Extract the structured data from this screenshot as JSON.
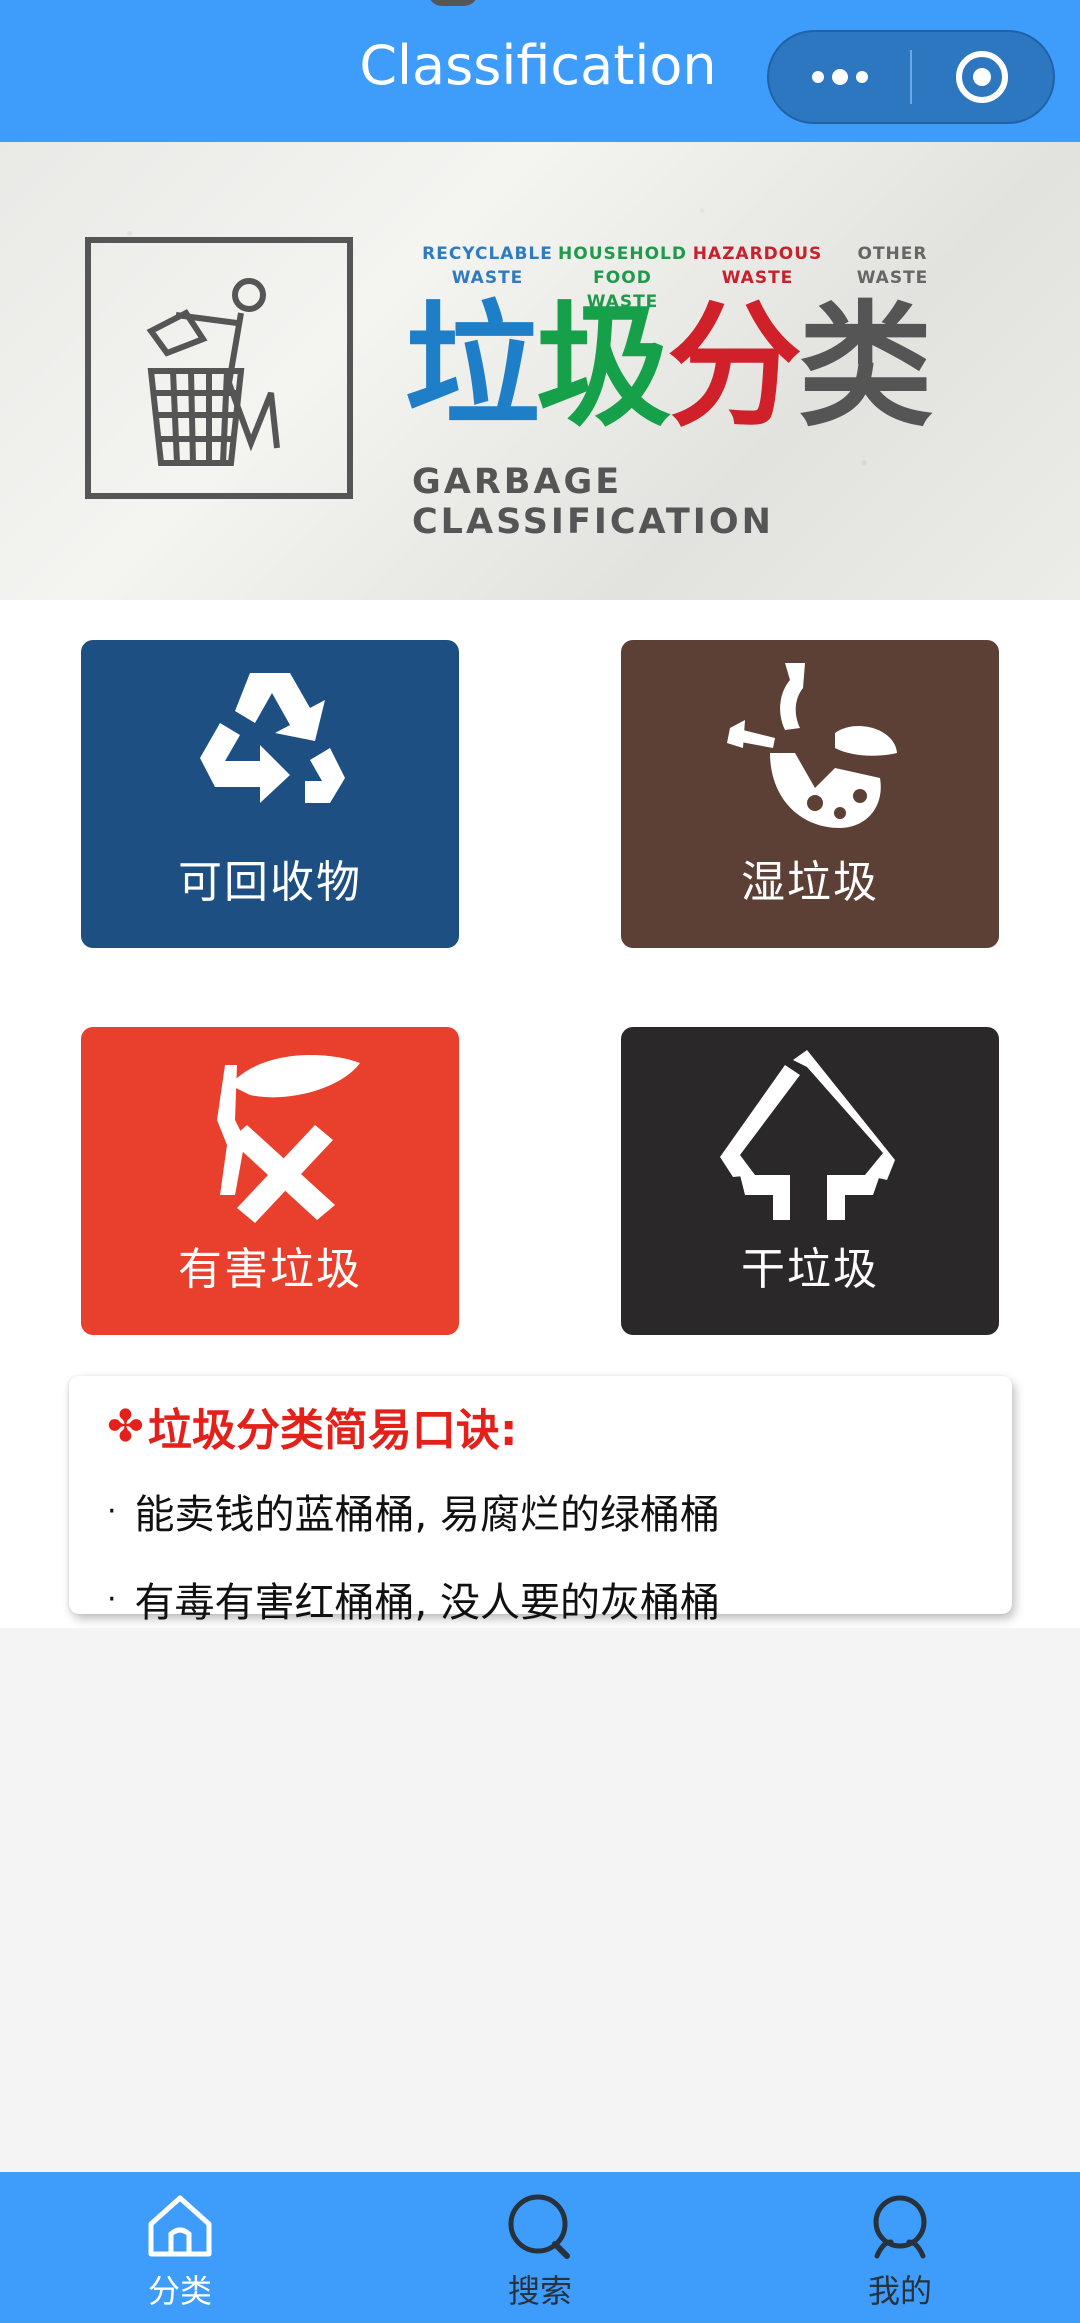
{
  "header": {
    "title": "Classification",
    "menu_icon": "more-dots-icon",
    "close_icon": "target-icon"
  },
  "banner": {
    "categories": [
      {
        "line1": "RECYCLABLE",
        "line2": "WASTE",
        "color": "#2f7bc0"
      },
      {
        "line1": "HOUSEHOLD",
        "line2": "FOOD WASTE",
        "color": "#1f9a4a"
      },
      {
        "line1": "HAZARDOUS",
        "line2": "WASTE",
        "color": "#c8202c"
      },
      {
        "line1": "OTHER",
        "line2": "WASTE",
        "color": "#666666"
      }
    ],
    "title_chars": [
      {
        "char": "垃",
        "color": "#1e7ec8"
      },
      {
        "char": "圾",
        "color": "#16a04a"
      },
      {
        "char": "分",
        "color": "#d0202a"
      },
      {
        "char": "类",
        "color": "#555555"
      }
    ],
    "subtitle": "GARBAGE CLASSIFICATION"
  },
  "cards": [
    {
      "label": "可回收物",
      "icon": "recycle-icon",
      "color": "#1d4f82"
    },
    {
      "label": "湿垃圾",
      "icon": "food-waste-icon",
      "color": "#5d4035"
    },
    {
      "label": "有害垃圾",
      "icon": "hazardous-icon",
      "color": "#e8402c"
    },
    {
      "label": "干垃圾",
      "icon": "dry-waste-icon",
      "color": "#2a2828"
    }
  ],
  "tips": {
    "clover": "✤",
    "title": "垃圾分类简易口诀:",
    "bullet": "·",
    "lines": [
      "能卖钱的蓝桶桶, 易腐烂的绿桶桶",
      "有毒有害红桶桶, 没人要的灰桶桶"
    ]
  },
  "tabbar": {
    "tabs": [
      {
        "label": "分类",
        "icon": "home-icon",
        "active": true
      },
      {
        "label": "搜索",
        "icon": "search-icon",
        "active": false
      },
      {
        "label": "我的",
        "icon": "profile-icon",
        "active": false
      }
    ]
  }
}
